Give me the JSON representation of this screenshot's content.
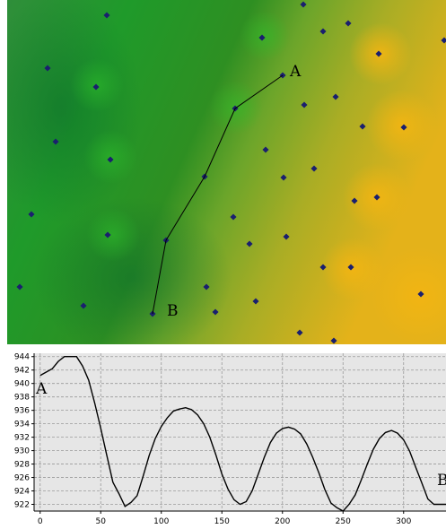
{
  "map": {
    "label_a": "A",
    "label_b": "B",
    "colors": {
      "low": "#1b8e2d",
      "mid": "#5fa82a",
      "high": "#e0b01a",
      "point": "#1a1f6e",
      "path": "#000000"
    },
    "path_icon": "profile-path-line",
    "point_icon": "elevation-point-dot"
  },
  "chart_data": {
    "type": "line",
    "label_a": "A",
    "label_b": "B",
    "xlim": [
      -5,
      335
    ],
    "ylim": [
      921,
      944.5
    ],
    "x_ticks": [
      0,
      50,
      100,
      150,
      200,
      250,
      300
    ],
    "y_ticks": [
      922,
      924,
      926,
      928,
      930,
      932,
      934,
      936,
      938,
      940,
      942,
      944
    ],
    "grid": true,
    "x": [
      0,
      5,
      10,
      15,
      20,
      25,
      30,
      35,
      40,
      45,
      50,
      55,
      60,
      65,
      70,
      75,
      80,
      85,
      90,
      95,
      100,
      105,
      110,
      115,
      120,
      125,
      130,
      135,
      140,
      145,
      150,
      155,
      160,
      165,
      170,
      175,
      180,
      185,
      190,
      195,
      200,
      205,
      210,
      215,
      220,
      225,
      230,
      235,
      240,
      245,
      250,
      255,
      260,
      265,
      270,
      275,
      280,
      285,
      290,
      295,
      300,
      305,
      310,
      315,
      320,
      325,
      330,
      335
    ],
    "values": [
      941.2,
      941.7,
      942.2,
      943.3,
      944.0,
      944.0,
      944.0,
      942.6,
      940.5,
      937.1,
      933.3,
      929.3,
      925.3,
      923.6,
      921.7,
      922.3,
      923.3,
      926.2,
      929.3,
      931.8,
      933.6,
      934.9,
      935.9,
      936.2,
      936.4,
      936.1,
      935.3,
      934.0,
      932.0,
      929.4,
      926.5,
      924.3,
      922.7,
      922.0,
      922.4,
      924.0,
      926.5,
      929.0,
      931.2,
      932.6,
      933.3,
      933.5,
      933.2,
      932.5,
      931.0,
      929.0,
      926.7,
      924.2,
      922.2,
      921.5,
      921.0,
      922.0,
      923.4,
      925.6,
      928.0,
      930.2,
      931.8,
      932.7,
      933.0,
      932.6,
      931.6,
      929.9,
      927.5,
      925.2,
      922.8,
      922.0,
      922.0,
      922.0
    ]
  }
}
